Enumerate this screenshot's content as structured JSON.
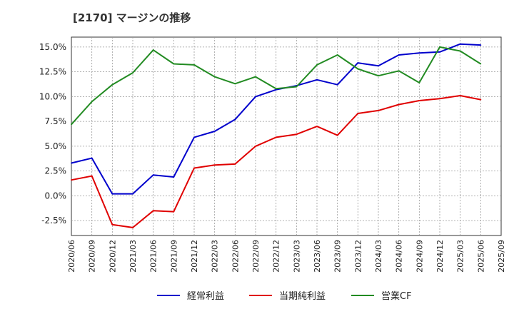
{
  "chart_data": {
    "type": "line",
    "title": "[2170]  マージンの推移",
    "xlabel": "",
    "ylabel": "",
    "x": [
      "2020/06",
      "2020/09",
      "2020/12",
      "2021/03",
      "2021/06",
      "2021/09",
      "2021/12",
      "2022/03",
      "2022/06",
      "2022/09",
      "2022/12",
      "2023/03",
      "2023/06",
      "2023/09",
      "2023/12",
      "2024/03",
      "2024/06",
      "2024/09",
      "2024/12",
      "2025/03",
      "2025/06",
      "2025/09"
    ],
    "ylim": [
      -4.0,
      16.0
    ],
    "yticks": [
      -2.5,
      0.0,
      2.5,
      5.0,
      7.5,
      10.0,
      12.5,
      15.0
    ],
    "ytick_labels": [
      "-2.5%",
      "0.0%",
      "2.5%",
      "5.0%",
      "7.5%",
      "10.0%",
      "12.5%",
      "15.0%"
    ],
    "grid": true,
    "legend_position": "bottom",
    "series": [
      {
        "name": "経常利益",
        "color": "#0000cc",
        "values": [
          3.3,
          3.8,
          0.2,
          0.2,
          2.1,
          1.9,
          5.9,
          6.5,
          7.7,
          10.0,
          10.7,
          11.1,
          11.7,
          11.2,
          13.4,
          13.1,
          14.2,
          14.4,
          14.5,
          15.3,
          15.2,
          null
        ]
      },
      {
        "name": "当期純利益",
        "color": "#e00000",
        "values": [
          1.6,
          2.0,
          -2.9,
          -3.2,
          -1.5,
          -1.6,
          2.8,
          3.1,
          3.2,
          5.0,
          5.9,
          6.2,
          7.0,
          6.1,
          8.3,
          8.6,
          9.2,
          9.6,
          9.8,
          10.1,
          9.7,
          null
        ]
      },
      {
        "name": "営業CF",
        "color": "#228b22",
        "values": [
          7.2,
          9.5,
          11.2,
          12.4,
          14.7,
          13.3,
          13.2,
          12.0,
          11.3,
          12.0,
          10.8,
          11.0,
          13.2,
          14.2,
          12.8,
          12.1,
          12.6,
          11.4,
          15.0,
          14.6,
          13.3,
          null
        ]
      }
    ]
  }
}
